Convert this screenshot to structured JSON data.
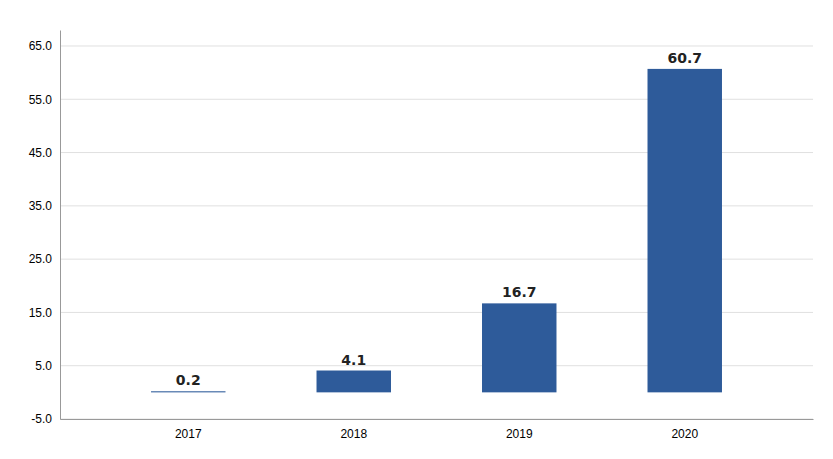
{
  "chart_data": {
    "type": "bar",
    "categories": [
      "2017",
      "2018",
      "2019",
      "2020"
    ],
    "values": [
      0.2,
      4.1,
      16.7,
      60.7
    ],
    "color": "#2E5B9A",
    "ylim": [
      -5.0,
      68.0
    ],
    "yticks": [
      {
        "value": -5.0,
        "label": "-5.0"
      },
      {
        "value": 5.0,
        "label": "5.0"
      },
      {
        "value": 15.0,
        "label": "15.0"
      },
      {
        "value": 25.0,
        "label": "25.0"
      },
      {
        "value": 35.0,
        "label": "35.0"
      },
      {
        "value": 45.0,
        "label": "45.0"
      },
      {
        "value": 55.0,
        "label": "55.0"
      },
      {
        "value": 65.0,
        "label": "65.0"
      }
    ],
    "grid": true,
    "data_labels": true
  }
}
